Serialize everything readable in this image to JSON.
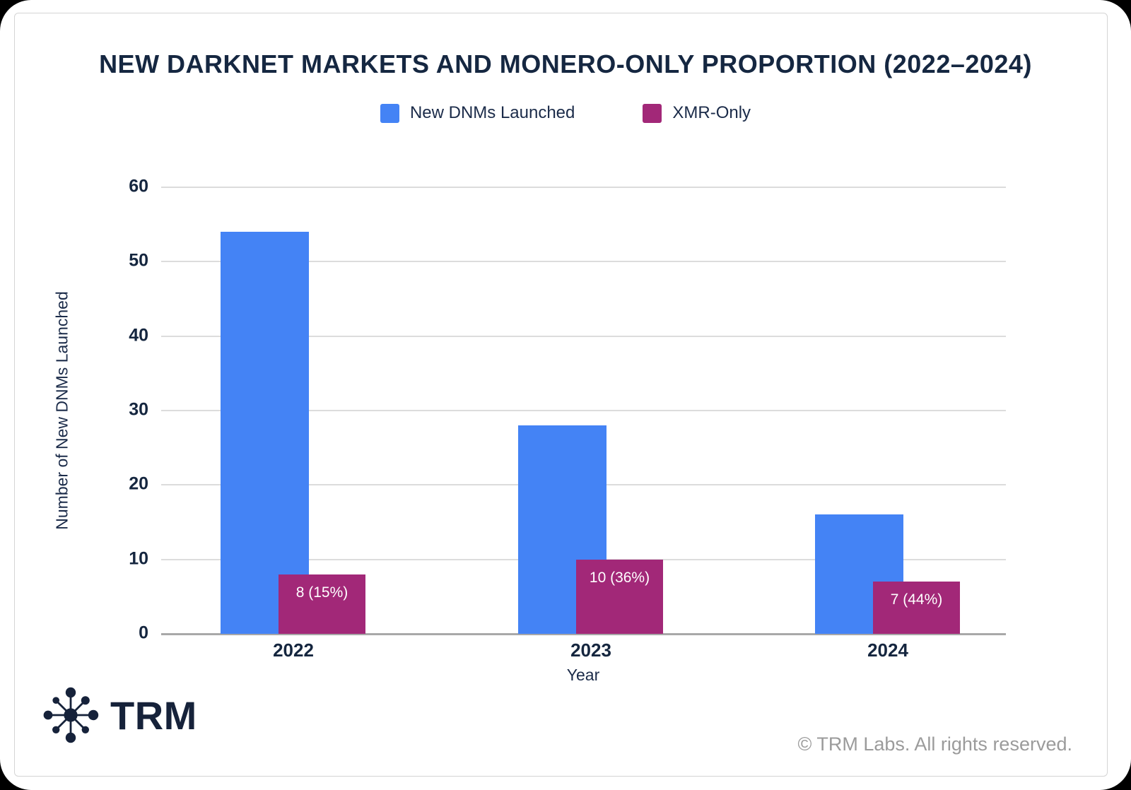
{
  "card": {
    "title": "NEW DARKNET MARKETS AND MONERO-ONLY PROPORTION (2022–2024)",
    "logo_text": "TRM",
    "logo_icon": "hub-spoke-network-icon",
    "copyright": "© TRM Labs. All rights reserved."
  },
  "legend": {
    "items": [
      {
        "label": "New DNMs Launched",
        "color": "#4483f5"
      },
      {
        "label": "XMR-Only",
        "color": "#a22878"
      }
    ]
  },
  "chart_data": {
    "type": "bar",
    "title": "NEW DARKNET MARKETS AND MONERO-ONLY PROPORTION (2022–2024)",
    "categories": [
      "2022",
      "2023",
      "2024"
    ],
    "series": [
      {
        "name": "New DNMs Launched",
        "color": "#4483f5",
        "values": [
          54,
          28,
          16
        ],
        "labels": [
          "",
          "",
          ""
        ]
      },
      {
        "name": "XMR-Only",
        "color": "#a22878",
        "values": [
          8,
          10,
          7
        ],
        "labels": [
          "8 (15%)",
          "10 (36%)",
          "7 (44%)"
        ]
      }
    ],
    "xlabel": "Year",
    "ylabel": "Number of New DNMs Launched",
    "ylim": [
      0,
      60
    ],
    "yticks": [
      0,
      10,
      20,
      30,
      40,
      50,
      60
    ],
    "grid": true,
    "legend_position": "top",
    "bar_label_color": "#ffffff"
  },
  "colors": {
    "title_text": "#152741",
    "axis_text": "#15263f",
    "gridline": "#dcdcdc",
    "axis_line": "#a8a8a8",
    "card_border": "#d4d4d4",
    "footer_text": "#9b9b9b",
    "logo_navy": "#16223a",
    "background": "#000000",
    "card_background": "#ffffff"
  }
}
